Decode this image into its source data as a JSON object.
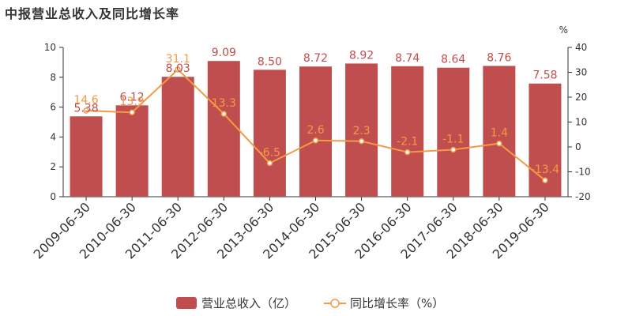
{
  "page": {
    "title": "中报营业总收入及同比增长率"
  },
  "chart_data": {
    "type": "bar",
    "categories": [
      "2009-06-30",
      "2010-06-30",
      "2011-06-30",
      "2012-06-30",
      "2013-06-30",
      "2014-06-30",
      "2015-06-30",
      "2016-06-30",
      "2017-06-30",
      "2018-06-30",
      "2019-06-30"
    ],
    "series": [
      {
        "name": "营业总收入（亿）",
        "type": "bar",
        "axis": "left",
        "color": "#c14e4e",
        "values": [
          5.38,
          6.12,
          8.03,
          9.09,
          8.5,
          8.72,
          8.92,
          8.74,
          8.64,
          8.76,
          7.58
        ],
        "labels": [
          "5.38",
          "6.12",
          "8.03",
          "9.09",
          "8.50",
          "8.72",
          "8.92",
          "8.74",
          "8.64",
          "8.76",
          "7.58"
        ]
      },
      {
        "name": "同比增长率（%）",
        "type": "line",
        "axis": "right",
        "color": "#f29a45",
        "values": [
          14.6,
          13.9,
          31.1,
          13.3,
          -6.5,
          2.6,
          2.3,
          -2.1,
          -1.1,
          1.4,
          -13.4
        ],
        "labels": [
          "14.6",
          "13.9",
          "31.1",
          "13.3",
          "-6.5",
          "2.6",
          "2.3",
          "-2.1",
          "-1.1",
          "1.4",
          "-13.4"
        ]
      }
    ],
    "y_left": {
      "ylim": [
        0,
        10
      ],
      "ticks": [
        "0",
        "2",
        "4",
        "6",
        "8",
        "10"
      ]
    },
    "y_right": {
      "ylim": [
        -20,
        40
      ],
      "ticks": [
        "-20",
        "-10",
        "0",
        "10",
        "20",
        "30",
        "40"
      ],
      "unit_label": "%"
    },
    "legend": {
      "position": "bottom-center"
    }
  }
}
